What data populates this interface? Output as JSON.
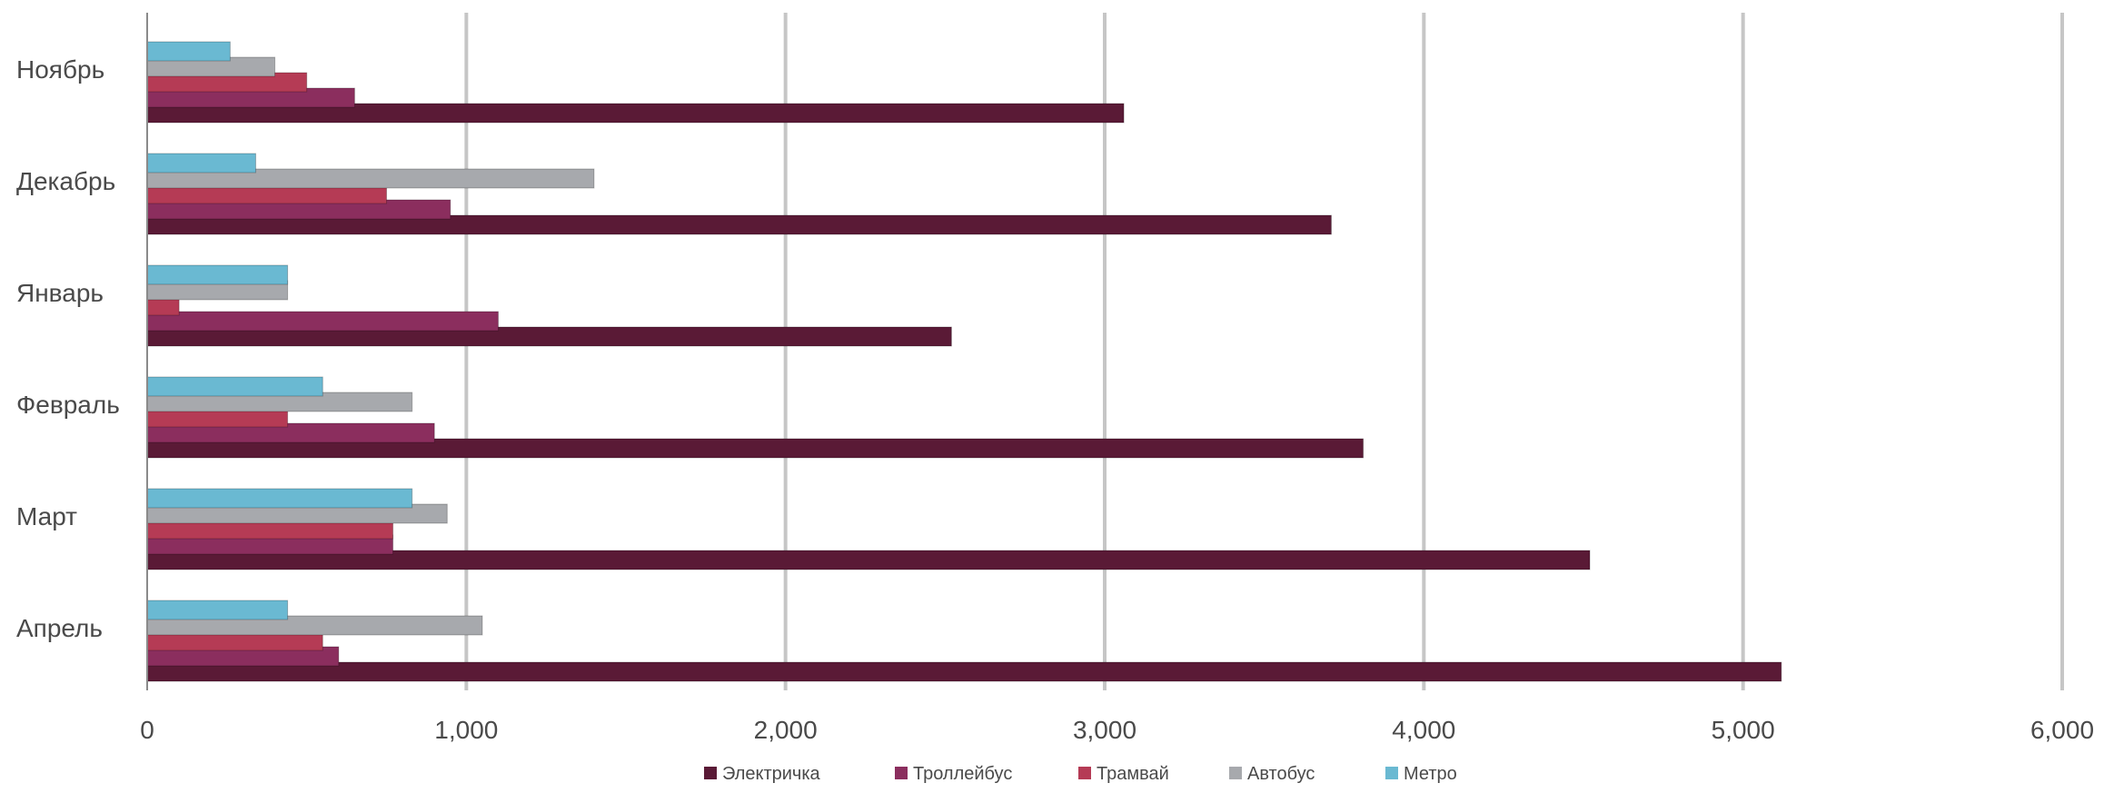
{
  "chart_data": {
    "type": "bar",
    "orientation": "horizontal",
    "categories": [
      "Ноябрь",
      "Декабрь",
      "Январь",
      "Февраль",
      "Март",
      "Апрель"
    ],
    "series": [
      {
        "name": "Электричка",
        "color": "#5a1a36",
        "values": [
          3060,
          3710,
          2520,
          3810,
          4520,
          5120
        ]
      },
      {
        "name": "Троллейбус",
        "color": "#8b2e5e",
        "values": [
          650,
          950,
          1100,
          900,
          770,
          600
        ]
      },
      {
        "name": "Трамвай",
        "color": "#b53b55",
        "values": [
          500,
          750,
          100,
          440,
          770,
          550
        ]
      },
      {
        "name": "Автобус",
        "color": "#a7a9ad",
        "values": [
          400,
          1400,
          440,
          830,
          940,
          1050
        ]
      },
      {
        "name": "Метро",
        "color": "#6ab9d2",
        "values": [
          260,
          340,
          440,
          550,
          830,
          440
        ]
      }
    ],
    "xlim": [
      0,
      6000
    ],
    "xticks": [
      0,
      1000,
      2000,
      3000,
      4000,
      5000,
      6000
    ],
    "xtick_labels": [
      "0",
      "1,000",
      "2,000",
      "3,000",
      "4,000",
      "5,000",
      "6,000"
    ],
    "grid": true,
    "legend_position": "bottom"
  }
}
